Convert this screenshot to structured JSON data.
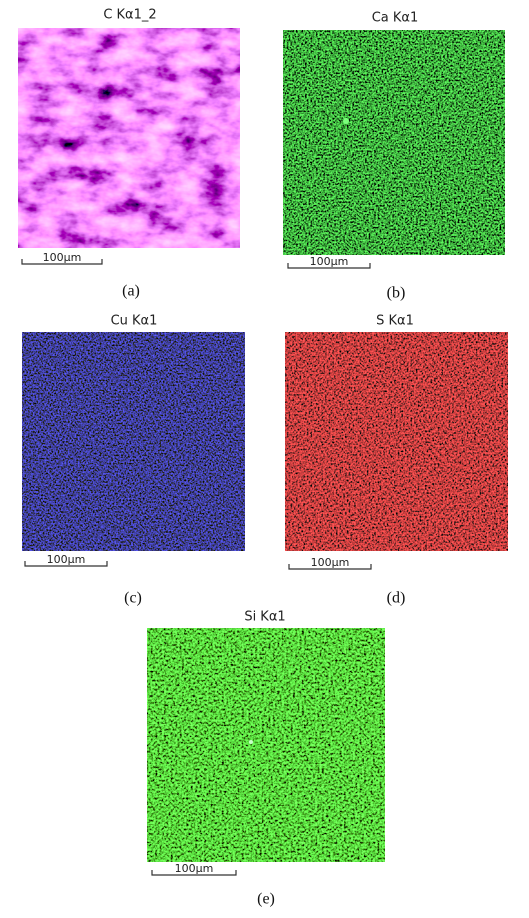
{
  "panels": [
    {
      "title": "C Kα1_2",
      "scale_label": "100µm",
      "caption": "(a)"
    },
    {
      "title": "Ca Kα1",
      "scale_label": "100µm",
      "caption": "(b)"
    },
    {
      "title": "Cu Kα1",
      "scale_label": "100µm",
      "caption": "(c)"
    },
    {
      "title": "S Kα1",
      "scale_label": "100µm",
      "caption": "(d)"
    },
    {
      "title": "Si Kα1",
      "scale_label": "100µm",
      "caption": "(e)"
    }
  ]
}
